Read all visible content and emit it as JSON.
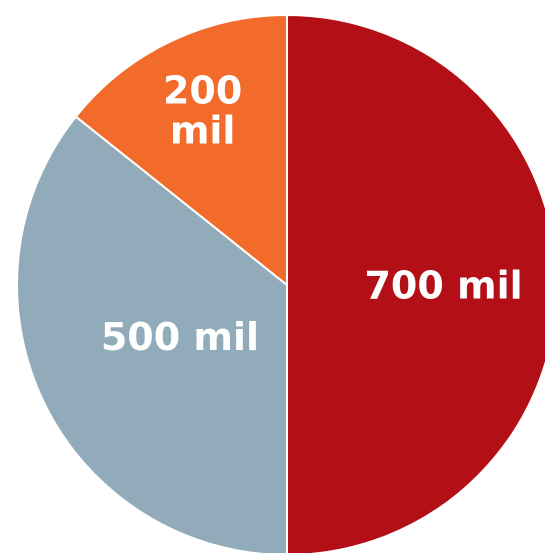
{
  "chart_data": {
    "type": "pie",
    "title": "",
    "slices": [
      {
        "label": "700 mil",
        "value": 700,
        "color": "#b30f17"
      },
      {
        "label": "500 mil",
        "value": 500,
        "color": "#92abba"
      },
      {
        "label": "200 mil",
        "value": 200,
        "color": "#f26b2a"
      }
    ],
    "start": "12 o'clock",
    "direction": "clockwise",
    "legend": "none"
  }
}
